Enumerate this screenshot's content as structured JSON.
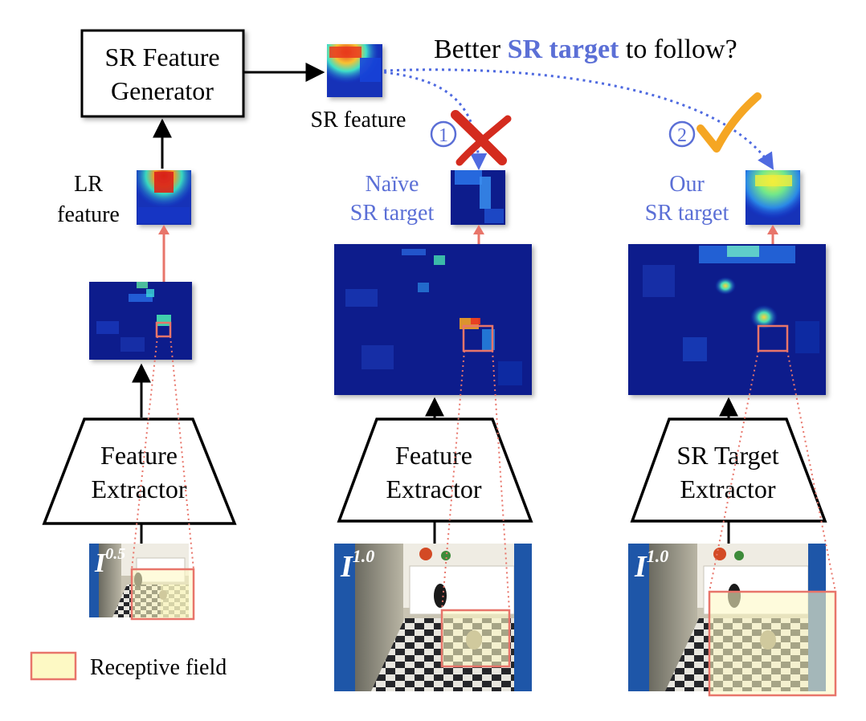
{
  "title": {
    "prefix": "Better ",
    "highlight": "SR target",
    "suffix": " to follow?"
  },
  "generator": {
    "line1": "SR Feature",
    "line2": "Generator"
  },
  "labels": {
    "sr_feature": "SR feature",
    "lr_line1": "LR",
    "lr_line2": "feature",
    "naive_line1": "Naïve",
    "naive_line2": "SR target",
    "our_line1": "Our",
    "our_line2": "SR target"
  },
  "markers": {
    "one": "1",
    "two": "2"
  },
  "extractors": {
    "left_line1": "Feature",
    "left_line2": "Extractor",
    "middle_line1": "Feature",
    "middle_line2": "Extractor",
    "right_line1": "SR Target",
    "right_line2": "Extractor"
  },
  "images": {
    "left_base": "I",
    "left_sup": "0.5",
    "middle_base": "I",
    "middle_sup": "1.0",
    "right_base": "I",
    "right_sup": "1.0"
  },
  "legend": {
    "label": "Receptive field"
  },
  "colors": {
    "accent_blue": "#5b6fd6",
    "receptive_fill": "#fdf9c4",
    "receptive_stroke": "#e8756a",
    "heat_dark": "#0a1e8c",
    "check_orange": "#f5a623",
    "cross_red": "#d42b1e"
  }
}
